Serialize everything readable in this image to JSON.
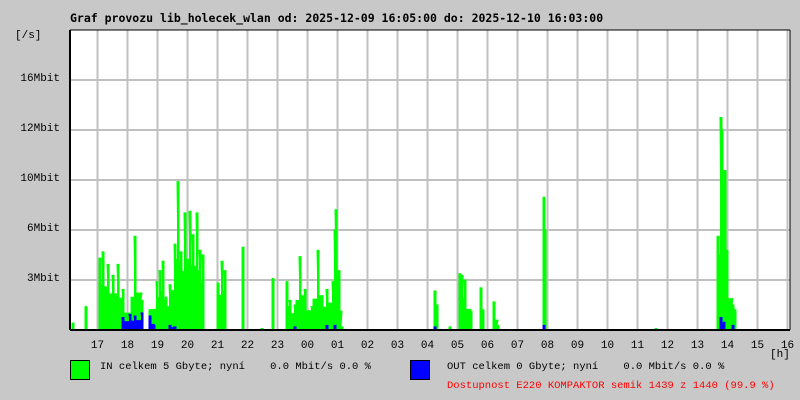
{
  "title": "Graf provozu lib_holecek_wlan od: 2025-12-09 16:05:00 do: 2025-12-10 16:03:00",
  "chart_data": {
    "type": "area",
    "title": "Graf provozu lib_holecek_wlan od: 2025-12-09 16:05:00 do: 2025-12-10 16:03:00",
    "ylabel": "[/s]",
    "xlabel": "[h]",
    "x_start": "2025-12-09 16:05:00",
    "x_end": "2025-12-10 16:03:00",
    "ylim_mbit": [
      0,
      19.2
    ],
    "grid": true,
    "y_ticks": [
      {
        "label": "3Mbit",
        "value": 3.2
      },
      {
        "label": "6Mbit",
        "value": 6.4
      },
      {
        "label": "10Mbit",
        "value": 9.6
      },
      {
        "label": "12Mbit",
        "value": 12.8
      },
      {
        "label": "16Mbit",
        "value": 16.0
      }
    ],
    "x_ticks": [
      "17",
      "18",
      "19",
      "20",
      "21",
      "22",
      "23",
      "00",
      "01",
      "02",
      "03",
      "04",
      "05",
      "06",
      "07",
      "08",
      "09",
      "10",
      "11",
      "12",
      "13",
      "14",
      "15",
      "16"
    ],
    "series": [
      {
        "name": "IN",
        "color": "#00ff00",
        "unit": "Mbit/s",
        "points": [
          [
            "16:11",
            0.45
          ],
          [
            "16:37",
            1.5
          ],
          [
            "17:05",
            4.6
          ],
          [
            "17:11",
            5.0
          ],
          [
            "17:21",
            4.2
          ],
          [
            "17:31",
            3.5
          ],
          [
            "17:41",
            4.2
          ],
          [
            "17:51",
            2.6
          ],
          [
            "18:05",
            1.0
          ],
          [
            "18:15",
            6.0
          ],
          [
            "18:29",
            1.9
          ],
          [
            "18:45",
            1.3
          ],
          [
            "18:59",
            3.1
          ],
          [
            "19:05",
            3.8
          ],
          [
            "19:11",
            4.4
          ],
          [
            "19:17",
            2.1
          ],
          [
            "19:25",
            2.9
          ],
          [
            "19:35",
            5.5
          ],
          [
            "19:41",
            9.5
          ],
          [
            "19:47",
            5.0
          ],
          [
            "19:55",
            7.5
          ],
          [
            "20:05",
            7.6
          ],
          [
            "20:11",
            6.1
          ],
          [
            "20:19",
            7.5
          ],
          [
            "20:25",
            5.1
          ],
          [
            "20:31",
            4.8
          ],
          [
            "21:01",
            3.0
          ],
          [
            "21:09",
            4.4
          ],
          [
            "21:15",
            3.8
          ],
          [
            "21:51",
            5.3
          ],
          [
            "22:29",
            0.1
          ],
          [
            "22:51",
            3.3
          ],
          [
            "23:19",
            3.1
          ],
          [
            "23:25",
            1.9
          ],
          [
            "23:35",
            1.6
          ],
          [
            "23:45",
            4.7
          ],
          [
            "23:55",
            2.6
          ],
          [
            "00:09",
            1.5
          ],
          [
            "00:21",
            5.1
          ],
          [
            "00:29",
            2.2
          ],
          [
            "00:39",
            2.6
          ],
          [
            "00:51",
            3.1
          ],
          [
            "00:55",
            6.4
          ],
          [
            "00:57",
            7.7
          ],
          [
            "01:03",
            3.8
          ],
          [
            "01:09",
            0.2
          ],
          [
            "04:15",
            2.5
          ],
          [
            "04:19",
            1.6
          ],
          [
            "04:45",
            0.2
          ],
          [
            "05:05",
            3.6
          ],
          [
            "05:09",
            3.5
          ],
          [
            "05:15",
            3.2
          ],
          [
            "05:27",
            1.2
          ],
          [
            "05:47",
            2.7
          ],
          [
            "05:51",
            1.3
          ],
          [
            "06:13",
            1.8
          ],
          [
            "06:21",
            0.3
          ],
          [
            "07:53",
            8.5
          ],
          [
            "07:55",
            6.4
          ],
          [
            "11:37",
            0.1
          ],
          [
            "13:41",
            6.0
          ],
          [
            "13:45",
            4.8
          ],
          [
            "13:47",
            13.6
          ],
          [
            "13:49",
            12.8
          ],
          [
            "13:53",
            9.3
          ],
          [
            "13:55",
            10.2
          ],
          [
            "13:59",
            5.1
          ],
          [
            "14:11",
            1.6
          ],
          [
            "14:15",
            1.3
          ]
        ]
      },
      {
        "name": "OUT",
        "color": "#0000ff",
        "unit": "Mbit/s",
        "points": [
          [
            "17:51",
            0.8
          ],
          [
            "18:05",
            1.0
          ],
          [
            "18:15",
            0.9
          ],
          [
            "18:29",
            1.1
          ],
          [
            "18:45",
            0.9
          ],
          [
            "18:53",
            0.3
          ],
          [
            "19:25",
            0.3
          ],
          [
            "19:35",
            0.2
          ],
          [
            "23:35",
            0.2
          ],
          [
            "00:39",
            0.3
          ],
          [
            "00:55",
            0.3
          ],
          [
            "04:15",
            0.2
          ],
          [
            "07:53",
            0.3
          ],
          [
            "13:47",
            0.8
          ],
          [
            "13:53",
            0.5
          ],
          [
            "14:11",
            0.3
          ]
        ]
      }
    ]
  },
  "legend": {
    "in_text": "IN celkem 5 Gbyte; nyní    0.0 Mbit/s 0.0 %",
    "out_text": "OUT celkem 0 Gbyte; nyní    0.0 Mbit/s 0.0 %",
    "availability": "Dostupnost E220 KOMPAKTOR semik 1439 z 1440 (99.9 %)",
    "in_color": "#00ff00",
    "out_color": "#0000ff",
    "availability_color": "#ff0000"
  }
}
